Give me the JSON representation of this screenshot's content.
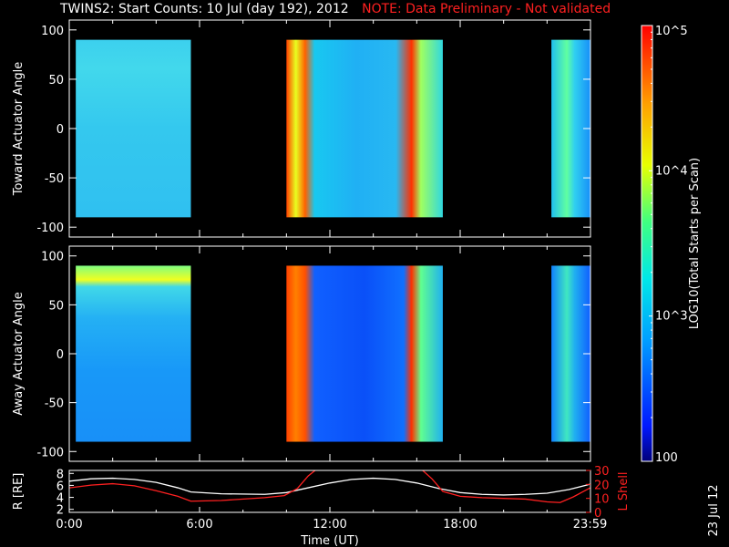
{
  "title": {
    "main": "TWINS2: Start Counts: 10 Jul (day 192), 2012",
    "note": "NOTE: Data Preliminary - Not validated"
  },
  "chart_data": [
    {
      "type": "heatmap",
      "name": "toward",
      "ylabel": "Toward Actuator Angle",
      "ylim": [
        -110,
        110
      ],
      "yticks": [
        "100",
        "50",
        "0",
        "-50",
        "-100"
      ],
      "data_ylim": [
        -90,
        90
      ],
      "x_units": "hours_UT",
      "coverage_blocks": [
        [
          0.3,
          5.6
        ],
        [
          10.0,
          17.2
        ],
        [
          22.2,
          23.98
        ]
      ]
    },
    {
      "type": "heatmap",
      "name": "away",
      "ylabel": "Away Actuator Angle",
      "ylim": [
        -110,
        110
      ],
      "yticks": [
        "100",
        "50",
        "0",
        "-50",
        "-100"
      ],
      "data_ylim": [
        -90,
        90
      ],
      "x_units": "hours_UT",
      "coverage_blocks": [
        [
          0.3,
          5.6
        ],
        [
          10.0,
          17.2
        ],
        [
          22.2,
          23.98
        ]
      ]
    },
    {
      "type": "line",
      "name": "orbit",
      "xlabel": "Time (UT)",
      "xticks": [
        "0:00",
        "6:00",
        "12:00",
        "18:00",
        "23:59"
      ],
      "xtick_values": [
        0,
        6,
        12,
        18,
        23.98
      ],
      "ylabel_left": "R [RE]",
      "yticks_left": [
        "8",
        "6",
        "4",
        "2"
      ],
      "ylim_left": [
        1.5,
        8.5
      ],
      "ylabel_right": "L Shell",
      "yticks_right": [
        "30",
        "20",
        "10",
        "0"
      ],
      "ylim_right": [
        0,
        30
      ],
      "series": [
        {
          "name": "R [RE]",
          "color": "#ffffff",
          "x": [
            0,
            1,
            2,
            3,
            4,
            5,
            5.6,
            7,
            9,
            10,
            11,
            12,
            13,
            14,
            15,
            16,
            17,
            18,
            19,
            20,
            21,
            22,
            23,
            23.98
          ],
          "y": [
            6.7,
            7.1,
            7.2,
            7.0,
            6.5,
            5.6,
            4.9,
            4.6,
            4.5,
            4.8,
            5.6,
            6.4,
            7.0,
            7.2,
            7.0,
            6.4,
            5.5,
            4.8,
            4.5,
            4.4,
            4.5,
            4.7,
            5.3,
            6.2
          ]
        },
        {
          "name": "L Shell",
          "color": "#ff2020",
          "x": [
            0,
            1,
            2,
            3,
            4,
            5,
            5.6,
            7,
            9,
            9.9,
            10.5,
            11,
            11.4,
            16.2,
            16.7,
            17.2,
            18,
            19,
            20,
            21,
            22,
            22.6,
            23.2,
            23.98
          ],
          "y": [
            17.5,
            19.5,
            20.5,
            19.0,
            15.5,
            11.5,
            8.0,
            8.5,
            10.5,
            12.0,
            17.0,
            26.0,
            31.0,
            31.0,
            24.0,
            15.0,
            11.5,
            10.5,
            10.0,
            9.5,
            7.5,
            7.0,
            11.0,
            17.5
          ]
        }
      ]
    }
  ],
  "colorbar": {
    "label": "LOG10(Total Starts per Scan)",
    "ticks": [
      "10^5",
      "10^4",
      "10^3",
      "100"
    ],
    "log_range": [
      2,
      5
    ]
  },
  "date_stamp": "23 Jul 12"
}
